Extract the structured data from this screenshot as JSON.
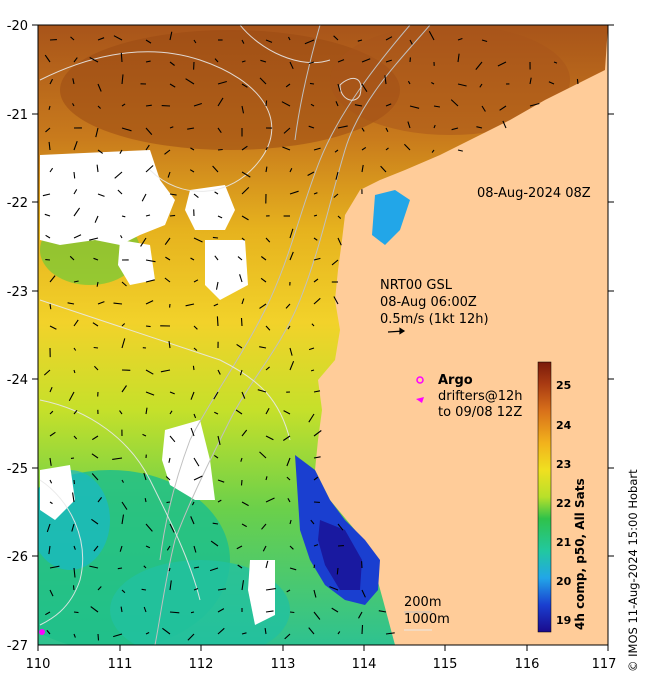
{
  "map": {
    "x_ticks": [
      "110",
      "111",
      "112",
      "113",
      "114",
      "115",
      "116",
      "117"
    ],
    "y_ticks": [
      "-20",
      "-21",
      "-22",
      "-23",
      "-24",
      "-25",
      "-26",
      "-27"
    ],
    "land_color": "#ffcc99",
    "cloud_color": "#ffffff"
  },
  "annotations": {
    "timestamp": "08-Aug-2024 08Z",
    "model_name": "NRT00 GSL",
    "model_time": "08-Aug 06:00Z",
    "vector_scale": "0.5m/s (1kt 12h)",
    "argo_label": "Argo",
    "drifters_label": "drifters@12h",
    "drifters_date": "to 09/08 12Z",
    "contour_200": "200m",
    "contour_1000": "1000m"
  },
  "colorbar": {
    "labels": [
      "25",
      "24",
      "23",
      "22",
      "21",
      "20",
      "19"
    ],
    "title": "4h comp, p50, All Sats",
    "stops": [
      "#1a0a8c",
      "#1a3fd0",
      "#22a6e8",
      "#22c8a0",
      "#2fc24a",
      "#b8e02a",
      "#f0e020",
      "#f2b21c",
      "#d8701a",
      "#a83a12",
      "#7a1a0a"
    ]
  },
  "credit": "© IMOS 11-Aug-2024 15:00 Hobart"
}
